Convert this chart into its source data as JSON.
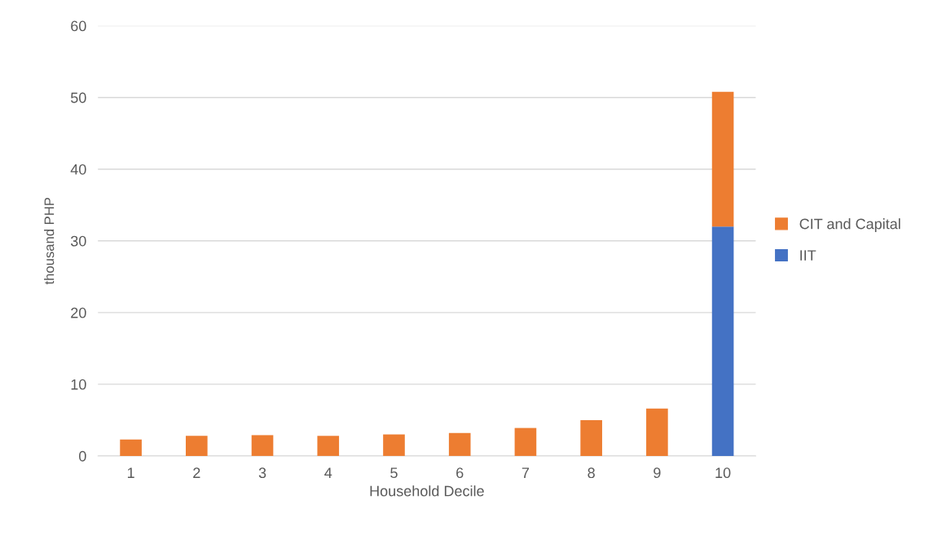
{
  "chart_data": {
    "type": "bar",
    "stacked": true,
    "xlabel": "Household Decile",
    "ylabel": "thousand PHP",
    "categories": [
      "1",
      "2",
      "3",
      "4",
      "5",
      "6",
      "7",
      "8",
      "9",
      "10"
    ],
    "series": [
      {
        "name": "IIT",
        "color": "#4472c4",
        "values": [
          null,
          null,
          null,
          null,
          null,
          null,
          null,
          null,
          null,
          32.0
        ]
      },
      {
        "name": "CIT and Capital",
        "color": "#ed7d31",
        "values": [
          2.3,
          2.8,
          2.9,
          2.8,
          3.0,
          3.2,
          3.9,
          5.0,
          6.6,
          18.8
        ]
      }
    ],
    "ylim": [
      0,
      60
    ],
    "yticks": [
      0,
      10,
      20,
      30,
      40,
      50,
      60
    ],
    "grid": "y",
    "legend": "right"
  }
}
